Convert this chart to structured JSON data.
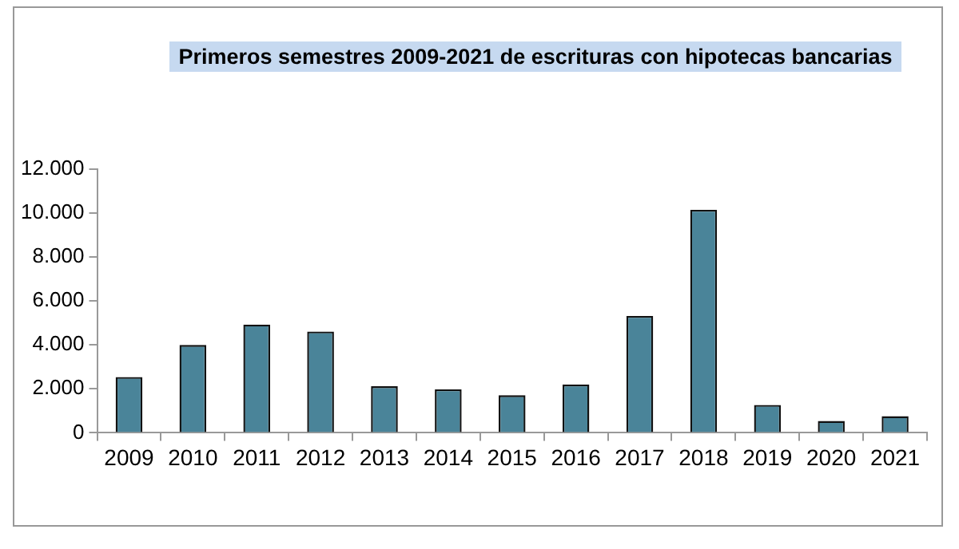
{
  "chart_data": {
    "type": "bar",
    "title": "Primeros semestres 2009-2021 de escrituras con hipotecas bancarias",
    "categories": [
      "2009",
      "2010",
      "2011",
      "2012",
      "2013",
      "2014",
      "2015",
      "2016",
      "2017",
      "2018",
      "2019",
      "2020",
      "2021"
    ],
    "values": [
      2540,
      4000,
      4930,
      4610,
      2120,
      1980,
      1710,
      2200,
      5320,
      10150,
      1270,
      540,
      760
    ],
    "color": "#4a8499",
    "ylim": [
      0,
      12000
    ],
    "yticks": [
      {
        "value": 0,
        "label": "0"
      },
      {
        "value": 2000,
        "label": "2.000"
      },
      {
        "value": 4000,
        "label": "4.000"
      },
      {
        "value": 6000,
        "label": "6.000"
      },
      {
        "value": 8000,
        "label": "8.000"
      },
      {
        "value": 10000,
        "label": "10.000"
      },
      {
        "value": 12000,
        "label": "12.000"
      }
    ],
    "grid": false,
    "legend": false
  }
}
